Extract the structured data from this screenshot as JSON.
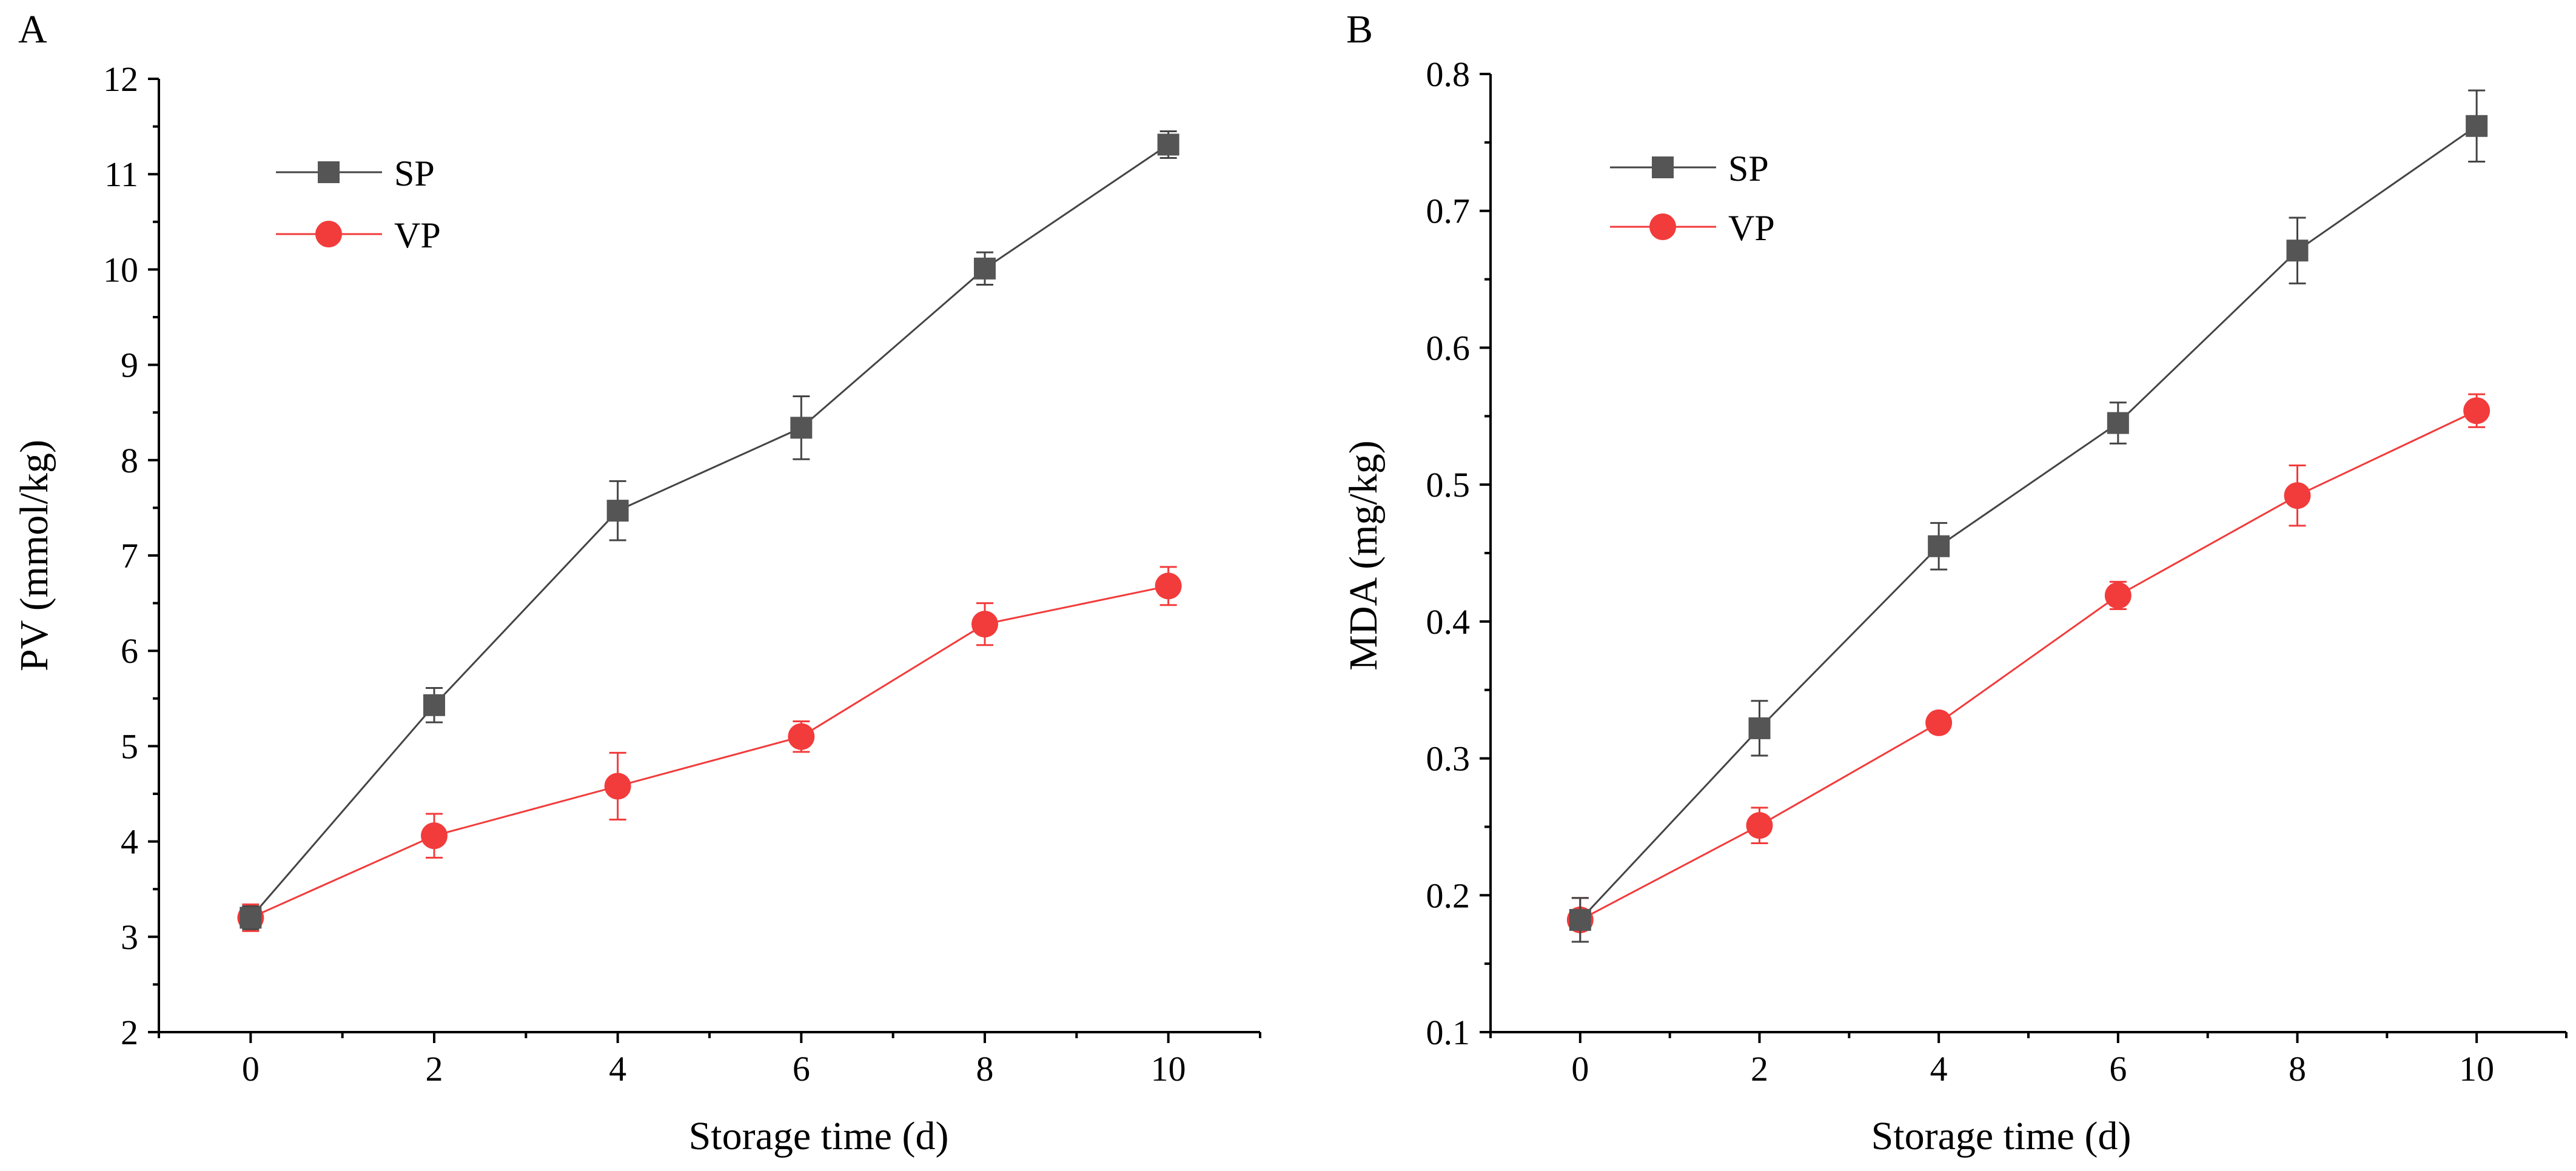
{
  "chart_data": [
    {
      "panel": "A",
      "type": "line",
      "x": [
        0,
        2,
        4,
        6,
        8,
        10
      ],
      "xlabel": "Storage time (d)",
      "ylabel": "PV (mmol/kg)",
      "xlim": [
        -1,
        11
      ],
      "ylim": [
        2,
        12
      ],
      "xticks": [
        "0",
        "2",
        "4",
        "6",
        "8",
        "10"
      ],
      "yticks": [
        "2",
        "3",
        "4",
        "5",
        "6",
        "7",
        "8",
        "9",
        "10",
        "11",
        "12"
      ],
      "legend_position": "top-left",
      "series": [
        {
          "name": "SP",
          "marker": "square",
          "color": "#555555",
          "line_color": "#444444",
          "values": [
            3.2,
            5.43,
            7.47,
            8.34,
            10.01,
            11.31
          ],
          "errors": [
            0.12,
            0.18,
            0.31,
            0.33,
            0.17,
            0.14
          ]
        },
        {
          "name": "VP",
          "marker": "circle",
          "color": "#f23b3b",
          "line_color": "#f23b3b",
          "values": [
            3.2,
            4.06,
            4.58,
            5.1,
            6.28,
            6.68
          ],
          "errors": [
            0.14,
            0.23,
            0.35,
            0.16,
            0.22,
            0.2
          ]
        }
      ]
    },
    {
      "panel": "B",
      "type": "line",
      "x": [
        0,
        2,
        4,
        6,
        8,
        10
      ],
      "xlabel": "Storage time (d)",
      "ylabel": "MDA (mg/kg)",
      "xlim": [
        -1,
        11
      ],
      "ylim": [
        0.1,
        0.8
      ],
      "xticks": [
        "0",
        "2",
        "4",
        "6",
        "8",
        "10"
      ],
      "yticks": [
        "0.1",
        "0.2",
        "0.3",
        "0.4",
        "0.5",
        "0.6",
        "0.7",
        "0.8"
      ],
      "legend_position": "top-left",
      "series": [
        {
          "name": "SP",
          "marker": "square",
          "color": "#555555",
          "line_color": "#444444",
          "values": [
            0.182,
            0.322,
            0.455,
            0.545,
            0.671,
            0.762
          ],
          "errors": [
            0.016,
            0.02,
            0.017,
            0.015,
            0.024,
            0.026
          ]
        },
        {
          "name": "VP",
          "marker": "circle",
          "color": "#f23b3b",
          "line_color": "#f23b3b",
          "values": [
            0.182,
            0.251,
            0.326,
            0.419,
            0.492,
            0.554
          ],
          "errors": [
            0.016,
            0.013,
            0.007,
            0.01,
            0.022,
            0.012
          ]
        }
      ]
    }
  ]
}
